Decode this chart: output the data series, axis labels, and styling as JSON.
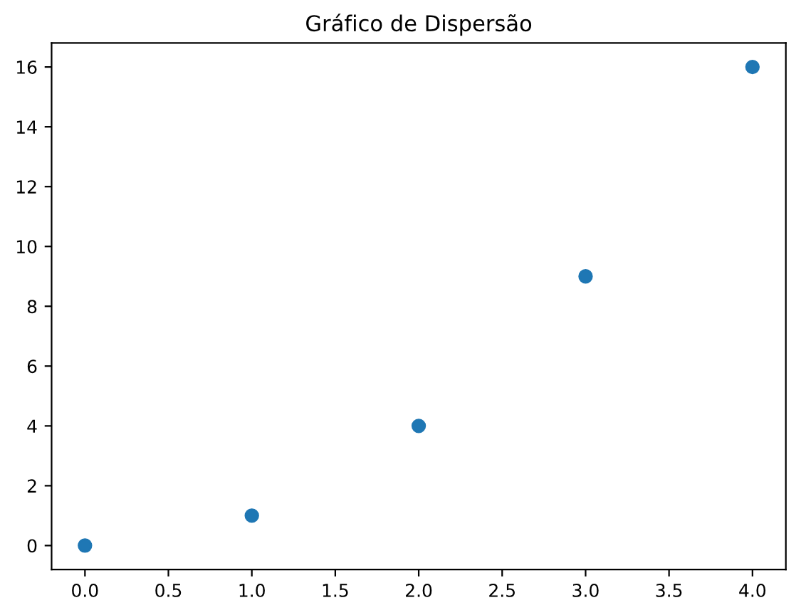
{
  "chart_data": {
    "type": "scatter",
    "title": "Gráfico de Dispersão",
    "x": [
      0,
      1,
      2,
      3,
      4
    ],
    "series": [
      {
        "color": "#1f77b4",
        "values": [
          0,
          1,
          4,
          9,
          16
        ]
      }
    ],
    "xlim": [
      -0.2,
      4.2
    ],
    "xticks": [
      {
        "value": 0,
        "label": "0.0"
      },
      {
        "value": 0.5,
        "label": "0.5"
      },
      {
        "value": 1,
        "label": "1.0"
      },
      {
        "value": 1.5,
        "label": "1.5"
      },
      {
        "value": 2,
        "label": "2.0"
      },
      {
        "value": 2.5,
        "label": "2.5"
      },
      {
        "value": 3,
        "label": "3.0"
      },
      {
        "value": 3.5,
        "label": "3.5"
      },
      {
        "value": 4,
        "label": "4.0"
      }
    ],
    "ylim": [
      -0.8,
      16.8
    ],
    "yticks": [
      0,
      2,
      4,
      6,
      8,
      10,
      12,
      14,
      16
    ],
    "marker": "circle",
    "grid": false,
    "legend": false
  }
}
